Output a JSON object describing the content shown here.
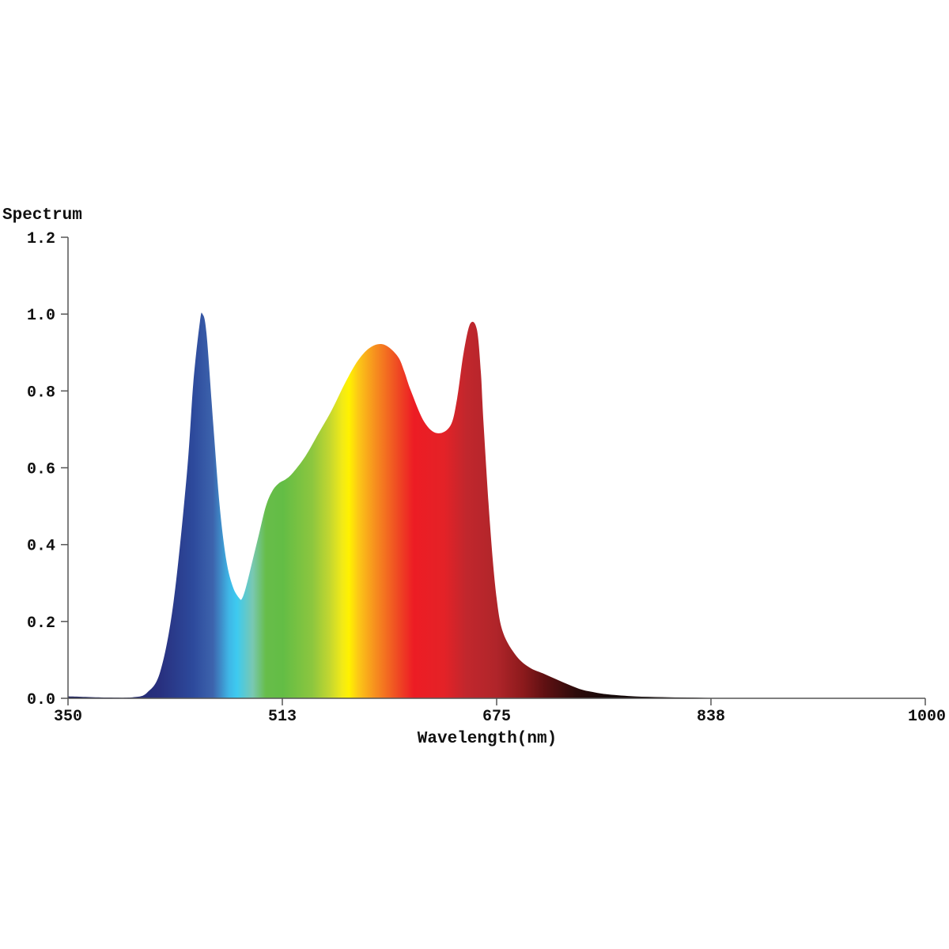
{
  "chart_data": {
    "type": "area",
    "ylabel": "Spectrum",
    "xlabel": "Wavelength(nm)",
    "xlim": [
      350,
      1000
    ],
    "ylim": [
      0,
      1.2
    ],
    "x_ticks": [
      "350",
      "513",
      "675",
      "838",
      "1000"
    ],
    "y_ticks": [
      "0.0",
      "0.2",
      "0.4",
      "0.6",
      "0.8",
      "1.0",
      "1.2"
    ],
    "grid": false,
    "legend": "none",
    "fill": "rainbow gradient by wavelength",
    "series": [
      {
        "x": [
          350,
          360,
          380,
          400,
          410,
          420,
          430,
          440,
          445,
          450,
          452,
          455,
          460,
          465,
          470,
          475,
          480,
          482,
          485,
          490,
          495,
          500,
          505,
          510,
          515,
          520,
          530,
          540,
          550,
          560,
          570,
          580,
          590,
          600,
          605,
          610,
          620,
          630,
          640,
          645,
          650,
          655,
          660,
          663,
          665,
          670,
          675,
          680,
          690,
          700,
          710,
          720,
          730,
          740,
          750,
          760,
          780,
          800,
          820,
          840,
          860,
          900,
          950,
          1000
        ],
        "y": [
          0.005,
          0.004,
          0.002,
          0.003,
          0.015,
          0.07,
          0.25,
          0.58,
          0.82,
          0.98,
          1.0,
          0.95,
          0.72,
          0.5,
          0.36,
          0.29,
          0.26,
          0.26,
          0.29,
          0.36,
          0.43,
          0.5,
          0.54,
          0.56,
          0.57,
          0.585,
          0.63,
          0.69,
          0.75,
          0.82,
          0.88,
          0.915,
          0.92,
          0.89,
          0.85,
          0.8,
          0.72,
          0.69,
          0.71,
          0.78,
          0.9,
          0.975,
          0.96,
          0.85,
          0.72,
          0.45,
          0.26,
          0.17,
          0.11,
          0.08,
          0.065,
          0.05,
          0.035,
          0.022,
          0.015,
          0.01,
          0.005,
          0.003,
          0.002,
          0.001,
          0.001,
          0.0,
          0.0,
          0.0
        ]
      }
    ]
  }
}
